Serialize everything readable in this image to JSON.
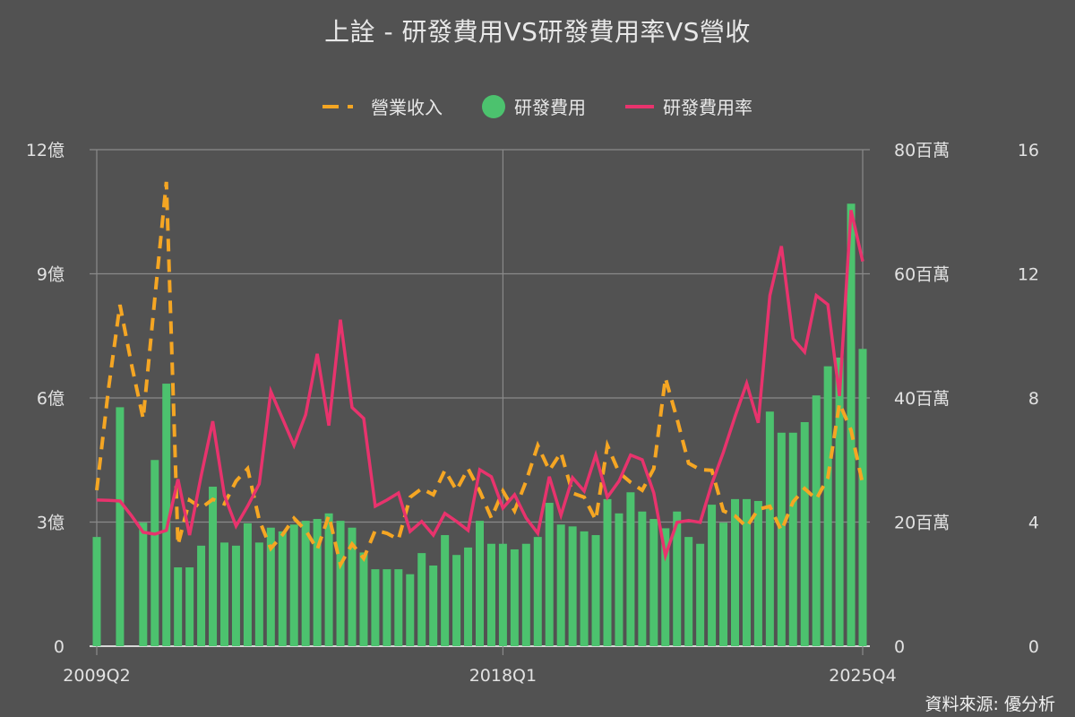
{
  "title": "上詮 - 研發費用VS研發費用率VS營收",
  "legend": [
    {
      "label": "營業收入",
      "color": "#f5a623",
      "style": "dashed"
    },
    {
      "label": "研發費用",
      "color": "#4cc26e",
      "style": "bar"
    },
    {
      "label": "研發費用率",
      "color": "#e8336d",
      "style": "line"
    }
  ],
  "source": "資料來源: 優分析",
  "axes": {
    "left": {
      "ticks": [
        "0",
        "3億",
        "6億",
        "9億",
        "12億"
      ],
      "values": [
        0,
        3,
        6,
        9,
        12
      ],
      "unit": "億",
      "series": "營業收入"
    },
    "right1": {
      "ticks": [
        "0",
        "20百萬",
        "40百萬",
        "60百萬",
        "80百萬"
      ],
      "values": [
        0,
        20,
        40,
        60,
        80
      ],
      "unit": "百萬",
      "series": "研發費用"
    },
    "right2": {
      "ticks": [
        "0",
        "4",
        "8",
        "12",
        "16"
      ],
      "values": [
        0,
        4,
        8,
        12,
        16
      ],
      "unit": "%",
      "series": "研發費用率"
    },
    "x_ticks": [
      "2009Q2",
      "2018Q1",
      "2025Q4"
    ]
  },
  "chart_data": {
    "type": "bar+line",
    "title": "上詮 - 研發費用VS研發費用率VS營收",
    "x_start": "2009Q2",
    "x_end": "2025Q4",
    "x_tick_labels": [
      "2009Q2",
      "2018Q1",
      "2025Q4"
    ],
    "x": [
      "2009Q2",
      "2009Q3",
      "2009Q4",
      "2010Q1",
      "2010Q2",
      "2010Q3",
      "2010Q4",
      "2011Q1",
      "2011Q2",
      "2011Q3",
      "2011Q4",
      "2012Q1",
      "2012Q2",
      "2012Q3",
      "2012Q4",
      "2013Q1",
      "2013Q2",
      "2013Q3",
      "2013Q4",
      "2014Q1",
      "2014Q2",
      "2014Q3",
      "2014Q4",
      "2015Q1",
      "2015Q2",
      "2015Q3",
      "2015Q4",
      "2016Q1",
      "2016Q2",
      "2016Q3",
      "2016Q4",
      "2017Q1",
      "2017Q2",
      "2017Q3",
      "2017Q4",
      "2018Q1",
      "2018Q2",
      "2018Q3",
      "2018Q4",
      "2019Q1",
      "2019Q2",
      "2019Q3",
      "2019Q4",
      "2020Q1",
      "2020Q2",
      "2020Q3",
      "2020Q4",
      "2021Q1",
      "2021Q2",
      "2021Q3",
      "2021Q4",
      "2022Q1",
      "2022Q2",
      "2022Q3",
      "2022Q4",
      "2023Q1",
      "2023Q2",
      "2023Q3",
      "2023Q4",
      "2024Q1",
      "2024Q2",
      "2024Q3",
      "2024Q4",
      "2025Q1",
      "2025Q2",
      "2025Q3",
      "2025Q4"
    ],
    "series": [
      {
        "name": "營業收入",
        "type": "line",
        "style": "dashed",
        "color": "#f5a623",
        "axis": "left",
        "unit": "億",
        "ylim": [
          0,
          12
        ],
        "values": [
          3.77,
          6.2,
          8.25,
          6.8,
          5.5,
          8.4,
          11.22,
          2.45,
          3.53,
          3.34,
          3.55,
          3.44,
          3.99,
          4.29,
          3.05,
          2.36,
          2.69,
          3.09,
          2.8,
          2.34,
          3.16,
          1.97,
          2.47,
          2.12,
          2.8,
          2.73,
          2.58,
          3.6,
          3.81,
          3.66,
          4.25,
          3.77,
          4.29,
          3.75,
          3.1,
          3.75,
          3.27,
          3.99,
          4.85,
          4.25,
          4.68,
          3.7,
          3.6,
          3.05,
          4.85,
          4.2,
          3.96,
          3.77,
          4.29,
          6.48,
          5.5,
          4.42,
          4.27,
          4.25,
          3.27,
          3.15,
          2.88,
          3.31,
          3.38,
          2.79,
          3.49,
          3.81,
          3.55,
          4.07,
          5.87,
          5.22,
          3.92
        ]
      },
      {
        "name": "研發費用",
        "type": "bar",
        "color": "#4cc26e",
        "axis": "right1",
        "unit": "百萬",
        "ylim": [
          0,
          80
        ],
        "values": [
          17.6,
          null,
          38.5,
          null,
          19.9,
          30.0,
          42.3,
          12.7,
          12.7,
          16.2,
          25.7,
          16.7,
          16.2,
          19.8,
          16.7,
          19.1,
          18.5,
          19.6,
          20.2,
          20.5,
          21.4,
          20.2,
          19.1,
          15.1,
          12.4,
          12.4,
          12.4,
          11.6,
          15.0,
          13.0,
          17.9,
          14.7,
          15.9,
          20.2,
          16.5,
          16.5,
          15.6,
          16.5,
          17.6,
          23.1,
          19.6,
          19.3,
          18.5,
          17.9,
          23.7,
          21.4,
          24.8,
          21.7,
          20.5,
          19.0,
          21.7,
          17.6,
          16.5,
          22.8,
          19.9,
          23.7,
          23.7,
          23.4,
          37.8,
          34.4,
          34.4,
          36.1,
          40.4,
          45.1,
          46.5,
          71.3,
          47.9
        ]
      },
      {
        "name": "研發費用率",
        "type": "line",
        "style": "solid",
        "color": "#e8336d",
        "axis": "right2",
        "unit": "%",
        "ylim": [
          0,
          16
        ],
        "values": [
          4.71,
          4.7,
          4.68,
          4.2,
          3.67,
          3.61,
          3.73,
          5.38,
          3.58,
          5.5,
          7.25,
          4.86,
          3.87,
          4.51,
          5.23,
          8.21,
          7.34,
          6.47,
          7.46,
          9.42,
          7.11,
          10.52,
          7.69,
          7.34,
          4.51,
          4.71,
          4.94,
          3.7,
          4.02,
          3.58,
          4.28,
          4.02,
          3.73,
          5.69,
          5.46,
          4.45,
          4.88,
          4.13,
          3.64,
          5.46,
          4.22,
          5.43,
          5.0,
          6.16,
          4.8,
          5.32,
          6.16,
          6.01,
          4.94,
          2.92,
          3.99,
          4.05,
          3.99,
          5.23,
          6.25,
          7.4,
          8.47,
          7.2,
          11.3,
          12.89,
          9.91,
          9.48,
          11.3,
          11.01,
          8.06,
          14.05,
          12.4
        ]
      }
    ],
    "legend_position": "top",
    "grid": true
  }
}
